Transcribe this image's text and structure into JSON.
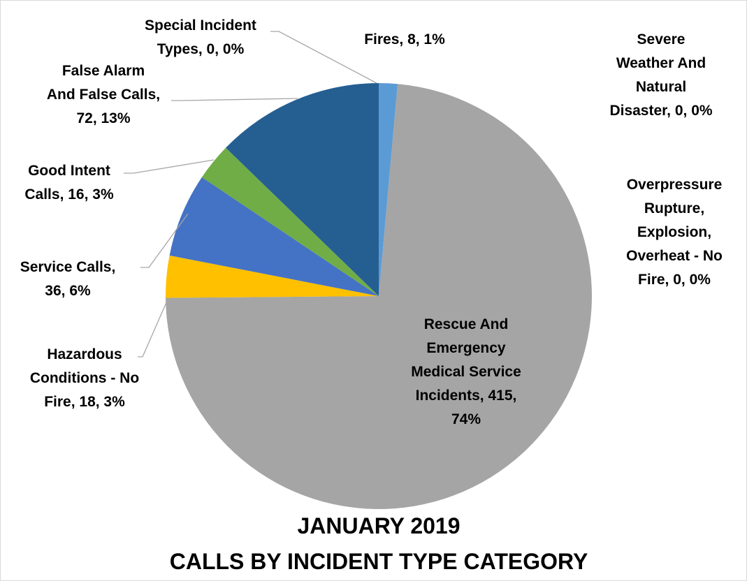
{
  "chart_data": {
    "type": "pie",
    "title": [
      "JANUARY 2019",
      "CALLS BY INCIDENT TYPE CATEGORY"
    ],
    "slices": [
      {
        "name": "Fires",
        "value": 8,
        "percent": "1%",
        "color": "#5b9bd5",
        "label": [
          "Fires, 8, 1%"
        ]
      },
      {
        "name": "Overpressure Rupture, Explosion, Overheat - No Fire",
        "value": 0,
        "percent": "0%",
        "color": "#ed7d31",
        "label": [
          "Overpressure",
          "Rupture,",
          "Explosion,",
          "Overheat - No",
          "Fire, 0, 0%"
        ]
      },
      {
        "name": "Rescue And Emergency Medical Service Incidents",
        "value": 415,
        "percent": "74%",
        "color": "#a5a5a5",
        "label": [
          "Rescue And",
          "Emergency",
          "Medical Service",
          "Incidents, 415,",
          "74%"
        ]
      },
      {
        "name": "Hazardous Conditions - No Fire",
        "value": 18,
        "percent": "3%",
        "color": "#ffc000",
        "label": [
          "Hazardous",
          "Conditions - No",
          "Fire, 18, 3%"
        ]
      },
      {
        "name": "Service Calls",
        "value": 36,
        "percent": "6%",
        "color": "#4472c4",
        "label": [
          "Service Calls,",
          "36, 6%"
        ]
      },
      {
        "name": "Good Intent Calls",
        "value": 16,
        "percent": "3%",
        "color": "#70ad47",
        "label": [
          "Good Intent",
          "Calls, 16, 3%"
        ]
      },
      {
        "name": "False Alarm And False Calls",
        "value": 72,
        "percent": "13%",
        "color": "#255e91",
        "label": [
          "False Alarm",
          "And False Calls,",
          "72, 13%"
        ]
      },
      {
        "name": "Severe Weather And Natural Disaster",
        "value": 0,
        "percent": "0%",
        "color": "#9e480e",
        "label": [
          "Severe",
          "Weather And",
          "Natural",
          "Disaster, 0, 0%"
        ]
      },
      {
        "name": "Special Incident Types",
        "value": 0,
        "percent": "0%",
        "color": "#636363",
        "label": [
          "Special Incident",
          "Types, 0, 0%"
        ]
      }
    ]
  }
}
